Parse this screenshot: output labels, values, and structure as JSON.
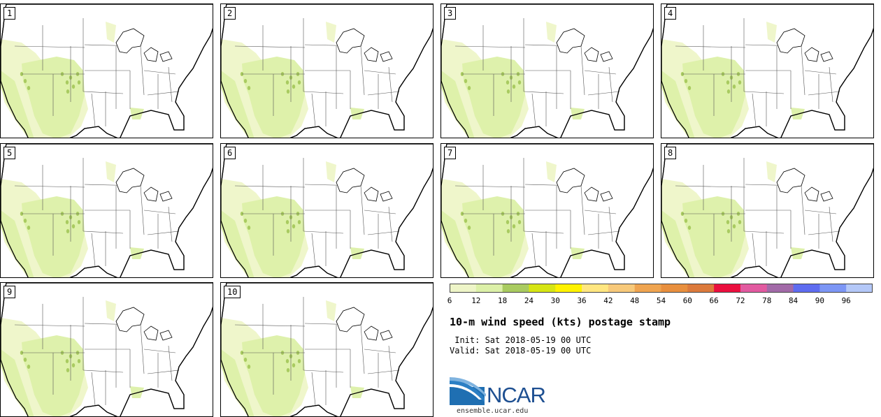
{
  "panels": [
    {
      "label": "1"
    },
    {
      "label": "2"
    },
    {
      "label": "3"
    },
    {
      "label": "4"
    },
    {
      "label": "5"
    },
    {
      "label": "6"
    },
    {
      "label": "7"
    },
    {
      "label": "8"
    },
    {
      "label": "9"
    },
    {
      "label": "10"
    }
  ],
  "colorbar": {
    "ticks": [
      "6",
      "12",
      "18",
      "24",
      "30",
      "36",
      "42",
      "48",
      "54",
      "60",
      "66",
      "72",
      "78",
      "84",
      "90",
      "96"
    ],
    "colors": [
      "#eef5c8",
      "#dcf0a8",
      "#a9cb60",
      "#d6e514",
      "#fff200",
      "#ffe680",
      "#f7c97a",
      "#efa450",
      "#e88f3e",
      "#dc7a3c",
      "#ea0f3e",
      "#e25aa0",
      "#a26aa8",
      "#5e6cf0",
      "#7c96f5",
      "#b4c8f8"
    ]
  },
  "title": "10-m wind speed (kts) postage stamp",
  "init_text": " Init: Sat 2018-05-19 00 UTC",
  "valid_text": "Valid: Sat 2018-05-19 00 UTC",
  "logo_text": "NCAR",
  "site": "ensemble.ucar.edu"
}
